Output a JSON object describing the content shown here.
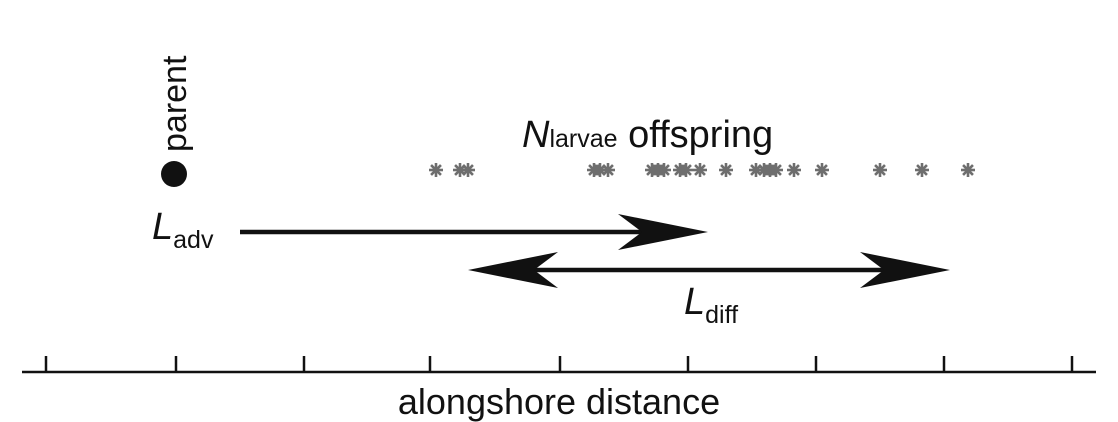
{
  "colors": {
    "ink": "#111111",
    "marker": "#6e6e6e",
    "background": "#ffffff"
  },
  "parent": {
    "label": "parent"
  },
  "offspring": {
    "symbol": "N",
    "subscript": "larvae",
    "suffix": " offspring",
    "marker": "asterisk",
    "positions": [
      436,
      460,
      468,
      594,
      600,
      608,
      652,
      658,
      664,
      680,
      686,
      700,
      726,
      756,
      764,
      770,
      776,
      794,
      822,
      880,
      922,
      968
    ]
  },
  "advection": {
    "symbol": "L",
    "subscript": "adv",
    "start": 240,
    "end": 708,
    "arrow": "right"
  },
  "diffusion": {
    "symbol": "L",
    "subscript": "diff",
    "start": 468,
    "end": 950,
    "arrow": "both"
  },
  "axis": {
    "title": "alongshore distance",
    "ticks": [
      46,
      176,
      304,
      430,
      560,
      688,
      816,
      944,
      1072
    ]
  }
}
